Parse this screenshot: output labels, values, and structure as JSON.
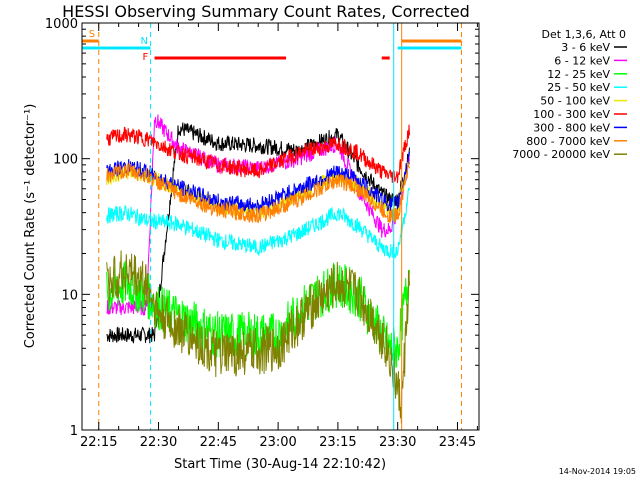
{
  "chart_data": {
    "type": "line",
    "title": "HESSI Observing Summary Count Rates, Corrected",
    "xlabel": "Start Time (30-Aug-14 22:10:42)",
    "ylabel": "Corrected Count Rate (s⁻¹ detector⁻¹)",
    "y_scale": "log",
    "ylim": [
      1,
      1000
    ],
    "xlim_minutes": [
      22.18,
      23.84
    ],
    "x_ticks": [
      "22:15",
      "22:30",
      "22:45",
      "23:00",
      "23:15",
      "23:30",
      "23:45"
    ],
    "y_ticks": [
      "1",
      "10",
      "100",
      "1000"
    ],
    "legend_title": "Det 1,3,6, Att 0",
    "legend_position": "right outside",
    "date_stamp": "14-Nov-2014 19:05",
    "flags": [
      {
        "label": "S",
        "color": "#ff8000",
        "segments": [
          [
            "22:10",
            "22:15"
          ],
          [
            "23:31",
            "23:46"
          ]
        ]
      },
      {
        "label": "N",
        "color": "#00e8ff",
        "segments": [
          [
            "22:10",
            "22:28"
          ],
          [
            "23:30",
            "23:46"
          ]
        ]
      },
      {
        "label": "F",
        "color": "#ff0000",
        "segments": [
          [
            "22:29",
            "23:02"
          ],
          [
            "23:26",
            "23:28"
          ]
        ]
      }
    ],
    "vlines": [
      {
        "time": "22:15",
        "color": "#ff8000",
        "style": "dashed"
      },
      {
        "time": "22:28",
        "color": "#00e8ff",
        "style": "dashed"
      },
      {
        "time": "23:29",
        "color": "#00e8ff",
        "style": "solid"
      },
      {
        "time": "23:31",
        "color": "#ff8000",
        "style": "solid"
      },
      {
        "time": "23:46",
        "color": "#ff8000",
        "style": "dashed"
      }
    ],
    "series": [
      {
        "name": "3 - 6 keV",
        "color": "#000000",
        "x": [
          "22:17",
          "22:27",
          "22:29",
          "22:35",
          "22:45",
          "22:55",
          "23:05",
          "23:15",
          "23:20",
          "23:26",
          "23:28",
          "23:30",
          "23:33"
        ],
        "y": [
          5,
          5,
          5,
          170,
          130,
          125,
          115,
          150,
          90,
          55,
          50,
          50,
          110
        ]
      },
      {
        "name": "6 - 12 keV",
        "color": "#ff00ff",
        "x": [
          "22:17",
          "22:27",
          "22:29",
          "22:35",
          "22:45",
          "22:55",
          "23:05",
          "23:15",
          "23:20",
          "23:26",
          "23:28",
          "23:30",
          "23:33"
        ],
        "y": [
          8,
          8,
          200,
          120,
          90,
          85,
          100,
          130,
          60,
          30,
          30,
          40,
          100
        ]
      },
      {
        "name": "12 - 25 keV",
        "color": "#00ff00",
        "x": [
          "22:17",
          "22:22",
          "22:27",
          "22:30",
          "22:45",
          "23:00",
          "23:08",
          "23:15",
          "23:20",
          "23:26",
          "23:28",
          "23:30",
          "23:33"
        ],
        "y": [
          10,
          12,
          10,
          8,
          5,
          5,
          9,
          12,
          10,
          5,
          4,
          4,
          15
        ]
      },
      {
        "name": "25 - 50 keV",
        "color": "#00ffff",
        "x": [
          "22:17",
          "22:22",
          "22:27",
          "22:35",
          "22:45",
          "22:55",
          "23:05",
          "23:15",
          "23:20",
          "23:26",
          "23:28",
          "23:30",
          "23:33"
        ],
        "y": [
          38,
          40,
          35,
          33,
          25,
          22,
          28,
          40,
          32,
          22,
          21,
          21,
          60
        ]
      },
      {
        "name": "50 - 100 keV",
        "color": "#e8e800",
        "x": [
          "22:17",
          "22:22",
          "22:27",
          "22:35",
          "22:45",
          "22:55",
          "23:05",
          "23:15",
          "23:20",
          "23:26",
          "23:28",
          "23:30",
          "23:33"
        ],
        "y": [
          70,
          80,
          75,
          60,
          45,
          40,
          55,
          75,
          65,
          45,
          42,
          42,
          100
        ]
      },
      {
        "name": "100 - 300 keV",
        "color": "#ff0000",
        "x": [
          "22:17",
          "22:22",
          "22:27",
          "22:35",
          "22:45",
          "22:55",
          "23:05",
          "23:15",
          "23:20",
          "23:26",
          "23:28",
          "23:30",
          "23:33"
        ],
        "y": [
          140,
          150,
          140,
          110,
          90,
          80,
          110,
          130,
          110,
          80,
          75,
          75,
          170
        ]
      },
      {
        "name": "300 - 800 keV",
        "color": "#0000ff",
        "x": [
          "22:17",
          "22:22",
          "22:27",
          "22:35",
          "22:45",
          "22:55",
          "23:05",
          "23:15",
          "23:20",
          "23:26",
          "23:28",
          "23:30",
          "23:33"
        ],
        "y": [
          80,
          88,
          80,
          62,
          48,
          45,
          60,
          80,
          70,
          50,
          46,
          46,
          110
        ]
      },
      {
        "name": "800 - 7000 keV",
        "color": "#ff8000",
        "x": [
          "22:17",
          "22:22",
          "22:27",
          "22:35",
          "22:45",
          "22:55",
          "23:05",
          "23:15",
          "23:20",
          "23:26",
          "23:28",
          "23:30",
          "23:33"
        ],
        "y": [
          75,
          82,
          75,
          55,
          42,
          38,
          50,
          70,
          60,
          42,
          38,
          38,
          95
        ]
      },
      {
        "name": "7000 - 20000 keV",
        "color": "#808000",
        "x": [
          "22:17",
          "22:22",
          "22:27",
          "22:30",
          "22:45",
          "23:00",
          "23:08",
          "23:15",
          "23:20",
          "23:26",
          "23:28",
          "23:31",
          "23:33"
        ],
        "y": [
          12,
          15,
          12,
          7,
          3.5,
          4,
          8,
          12,
          10,
          5,
          3.5,
          1.5,
          15
        ]
      }
    ]
  }
}
